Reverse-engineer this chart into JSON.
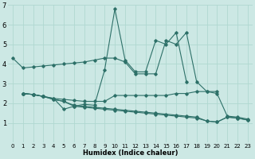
{
  "xlabel": "Humidex (Indice chaleur)",
  "bg_color": "#cce8e4",
  "line_color": "#2d7068",
  "grid_color": "#b0d8d0",
  "xlim": [
    -0.5,
    23.5
  ],
  "ylim": [
    0,
    7
  ],
  "xticks": [
    0,
    1,
    2,
    3,
    4,
    5,
    6,
    7,
    8,
    9,
    10,
    11,
    12,
    13,
    14,
    15,
    16,
    17,
    18,
    19,
    20,
    21,
    22,
    23
  ],
  "yticks": [
    1,
    2,
    3,
    4,
    5,
    6,
    7
  ],
  "series": [
    {
      "x": [
        0,
        1,
        2,
        3,
        4,
        5,
        6,
        7,
        8,
        9,
        10,
        11,
        12,
        13,
        14,
        15,
        16,
        17,
        18,
        19,
        20,
        21,
        22,
        23
      ],
      "y": [
        4.3,
        3.8,
        3.85,
        3.9,
        3.95,
        4.0,
        4.05,
        4.1,
        4.2,
        4.3,
        4.3,
        4.1,
        3.5,
        3.5,
        3.5,
        5.2,
        5.0,
        5.6,
        3.1,
        2.6,
        2.5,
        1.35,
        1.3,
        1.2
      ]
    },
    {
      "x": [
        1,
        2,
        3,
        4,
        5,
        6,
        7,
        8,
        9,
        10,
        11,
        12,
        13,
        14,
        15,
        16,
        17,
        18
      ],
      "y": [
        2.5,
        2.45,
        2.35,
        2.25,
        1.7,
        1.85,
        1.95,
        1.9,
        3.7,
        6.8,
        4.2,
        3.6,
        3.6,
        5.2,
        5.0,
        5.6,
        3.1,
        null
      ]
    },
    {
      "x": [
        1,
        2,
        3,
        4,
        5,
        6,
        7,
        8,
        9,
        10,
        11,
        12,
        13,
        14,
        15,
        16,
        17,
        18,
        19,
        20
      ],
      "y": [
        2.5,
        2.45,
        2.35,
        2.25,
        2.2,
        2.15,
        2.1,
        2.1,
        2.1,
        2.4,
        2.4,
        2.4,
        2.4,
        2.4,
        2.4,
        2.5,
        2.5,
        2.6,
        2.6,
        2.6
      ]
    },
    {
      "x": [
        1,
        2,
        3,
        4,
        5,
        6,
        7,
        8,
        9,
        10,
        11,
        12,
        13,
        14,
        15,
        16,
        17,
        18,
        19,
        20,
        21,
        22,
        23
      ],
      "y": [
        2.5,
        2.45,
        2.35,
        2.2,
        2.1,
        1.85,
        1.8,
        1.75,
        1.7,
        1.65,
        1.6,
        1.55,
        1.5,
        1.45,
        1.4,
        1.35,
        1.3,
        1.25,
        1.1,
        1.05,
        1.3,
        1.25,
        1.15
      ]
    },
    {
      "x": [
        1,
        2,
        3,
        4,
        5,
        6,
        7,
        8,
        9,
        10,
        11,
        12,
        13,
        14,
        15,
        16,
        17,
        18,
        19,
        20,
        21,
        22,
        23
      ],
      "y": [
        2.5,
        2.45,
        2.35,
        2.2,
        2.1,
        1.9,
        1.85,
        1.8,
        1.75,
        1.7,
        1.65,
        1.6,
        1.55,
        1.5,
        1.45,
        1.4,
        1.35,
        1.3,
        1.1,
        1.05,
        1.3,
        1.25,
        1.15
      ]
    }
  ]
}
